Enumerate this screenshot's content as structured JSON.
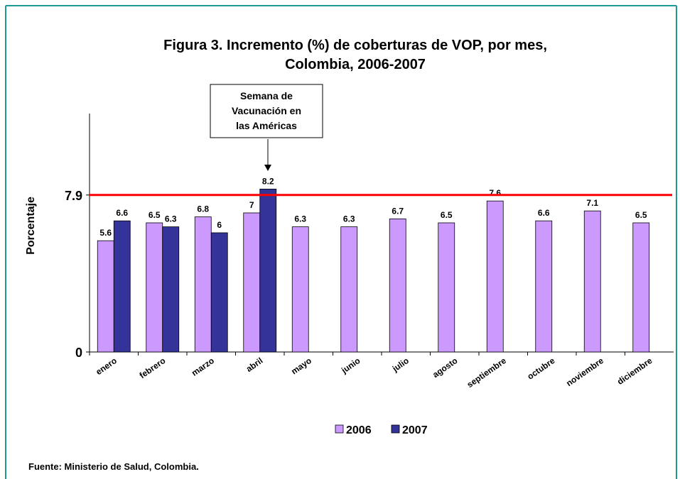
{
  "chart_data": {
    "type": "bar",
    "title": [
      "Figura 3. Incremento (%) de coberturas de VOP, por mes,",
      "Colombia, 2006-2007"
    ],
    "y_label": "Porcentaje",
    "categories": [
      "enero",
      "febrero",
      "marzo",
      "abril",
      "mayo",
      "junio",
      "julio",
      "agosto",
      "septiembre",
      "octubre",
      "noviembre",
      "diciembre"
    ],
    "series": [
      {
        "name": "2006",
        "color": "#cc99ff",
        "values": [
          5.6,
          6.5,
          6.8,
          7,
          6.3,
          6.3,
          6.7,
          6.5,
          7.6,
          6.6,
          7.1,
          6.5
        ]
      },
      {
        "name": "2007",
        "color": "#333399",
        "values": [
          6.6,
          6.3,
          6,
          8.2,
          null,
          null,
          null,
          null,
          null,
          null,
          null,
          null
        ]
      }
    ],
    "ylim": [
      0,
      12
    ],
    "yticks": [
      0,
      7.9
    ],
    "reference_line": {
      "value": 7.9,
      "color": "#ff0000"
    },
    "annotation": [
      "Semana de",
      "Vacunación en",
      "las Américas"
    ],
    "source": "Fuente: Ministerio de Salud, Colombia."
  }
}
